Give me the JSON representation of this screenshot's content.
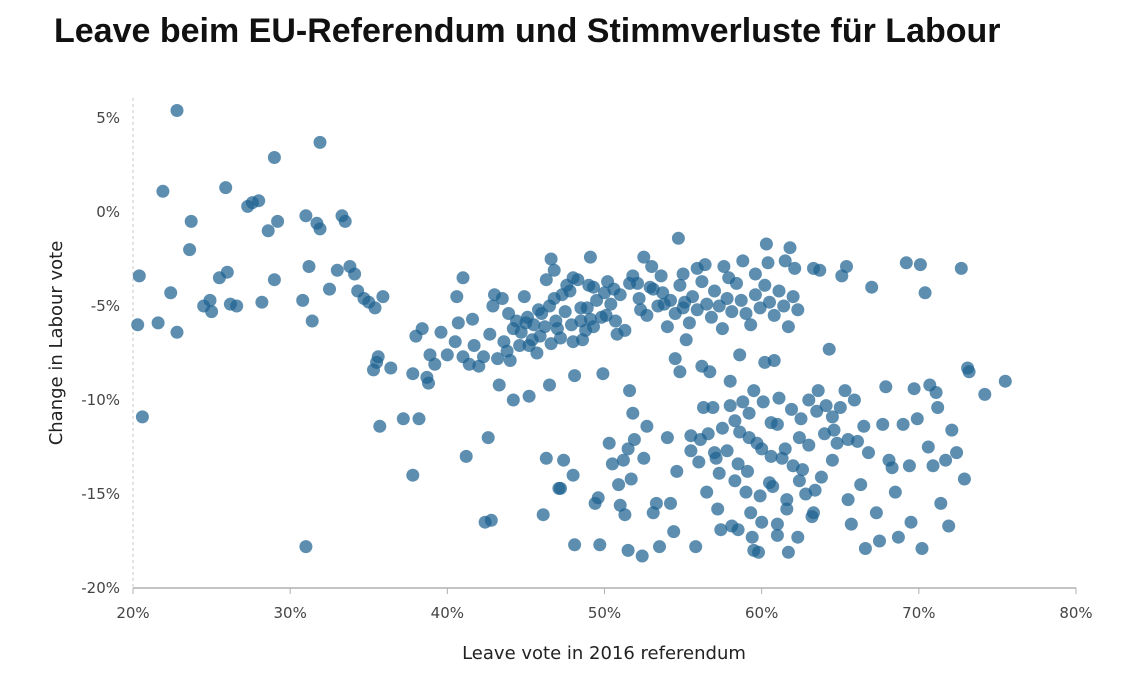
{
  "title": "Leave beim EU-Referendum und Stimmverluste für Labour",
  "chart_data": {
    "type": "scatter",
    "title": "Leave beim EU-Referendum und Stimmverluste für Labour",
    "xlabel": "Leave vote in 2016 referendum",
    "ylabel": "Change in Labour vote",
    "xlim": [
      20,
      80
    ],
    "ylim": [
      -20,
      6
    ],
    "x_ticks": [
      20,
      30,
      40,
      50,
      60,
      70,
      80
    ],
    "x_tick_labels": [
      "20%",
      "30%",
      "40%",
      "50%",
      "60%",
      "70%",
      "80%"
    ],
    "y_ticks": [
      5,
      0,
      -5,
      -10,
      -15,
      -20
    ],
    "y_tick_labels": [
      "5%",
      "0%",
      "-5%",
      "-10%",
      "-15%",
      "-20%"
    ],
    "grid": false,
    "marker_color": "#1f6391",
    "points": [
      [
        22.8,
        5.4
      ],
      [
        29.0,
        2.9
      ],
      [
        31.9,
        3.7
      ],
      [
        21.9,
        1.1
      ],
      [
        25.9,
        1.3
      ],
      [
        27.6,
        0.5
      ],
      [
        28.0,
        0.6
      ],
      [
        27.3,
        0.3
      ],
      [
        20.4,
        -3.4
      ],
      [
        20.3,
        -6.0
      ],
      [
        20.6,
        -10.9
      ],
      [
        21.6,
        -5.9
      ],
      [
        22.4,
        -4.3
      ],
      [
        22.8,
        -6.4
      ],
      [
        23.6,
        -2.0
      ],
      [
        23.7,
        -0.5
      ],
      [
        24.5,
        -5.0
      ],
      [
        24.9,
        -4.7
      ],
      [
        25.0,
        -5.3
      ],
      [
        25.5,
        -3.5
      ],
      [
        26.0,
        -3.2
      ],
      [
        26.2,
        -4.9
      ],
      [
        26.6,
        -5.0
      ],
      [
        28.2,
        -4.8
      ],
      [
        28.6,
        -1.0
      ],
      [
        29.0,
        -3.6
      ],
      [
        29.2,
        -0.5
      ],
      [
        30.8,
        -4.7
      ],
      [
        31.0,
        -0.2
      ],
      [
        31.2,
        -2.9
      ],
      [
        31.4,
        -5.8
      ],
      [
        31.7,
        -0.6
      ],
      [
        31.9,
        -0.9
      ],
      [
        31.0,
        -17.8
      ],
      [
        32.5,
        -4.1
      ],
      [
        33.0,
        -3.1
      ],
      [
        33.3,
        -0.2
      ],
      [
        33.5,
        -0.5
      ],
      [
        33.8,
        -2.9
      ],
      [
        34.1,
        -3.3
      ],
      [
        34.3,
        -4.2
      ],
      [
        34.7,
        -4.6
      ],
      [
        35.0,
        -4.8
      ],
      [
        35.4,
        -5.1
      ],
      [
        35.6,
        -7.7
      ],
      [
        35.7,
        -11.4
      ],
      [
        35.9,
        -4.5
      ],
      [
        36.4,
        -8.3
      ],
      [
        35.3,
        -8.4
      ],
      [
        35.5,
        -8.0
      ],
      [
        37.2,
        -11.0
      ],
      [
        37.8,
        -14.0
      ],
      [
        37.8,
        -8.6
      ],
      [
        38.0,
        -6.6
      ],
      [
        38.2,
        -11.0
      ],
      [
        38.4,
        -6.2
      ],
      [
        38.7,
        -8.8
      ],
      [
        38.8,
        -9.1
      ],
      [
        38.9,
        -7.6
      ],
      [
        39.2,
        -8.1
      ],
      [
        39.6,
        -6.4
      ],
      [
        40.0,
        -7.6
      ],
      [
        40.5,
        -6.9
      ],
      [
        40.7,
        -5.9
      ],
      [
        40.6,
        -4.5
      ],
      [
        41.0,
        -3.5
      ],
      [
        41.0,
        -7.7
      ],
      [
        41.2,
        -13.0
      ],
      [
        41.4,
        -8.1
      ],
      [
        41.6,
        -5.7
      ],
      [
        41.7,
        -7.1
      ],
      [
        42.0,
        -8.2
      ],
      [
        42.3,
        -7.7
      ],
      [
        42.4,
        -16.5
      ],
      [
        42.6,
        -12.0
      ],
      [
        42.7,
        -6.5
      ],
      [
        42.8,
        -16.4
      ],
      [
        42.9,
        -5.0
      ],
      [
        43.0,
        -4.4
      ],
      [
        43.2,
        -7.8
      ],
      [
        43.3,
        -9.2
      ],
      [
        43.5,
        -4.6
      ],
      [
        43.6,
        -6.9
      ],
      [
        43.8,
        -7.4
      ],
      [
        44.0,
        -7.9
      ],
      [
        44.2,
        -10.0
      ],
      [
        44.4,
        -5.8
      ],
      [
        44.7,
        -6.4
      ],
      [
        44.9,
        -4.5
      ],
      [
        45.1,
        -5.6
      ],
      [
        45.2,
        -7.1
      ],
      [
        45.2,
        -9.8
      ],
      [
        45.5,
        -6.0
      ],
      [
        45.7,
        -7.5
      ],
      [
        45.9,
        -6.6
      ],
      [
        46.0,
        -5.4
      ],
      [
        46.1,
        -16.1
      ],
      [
        46.3,
        -3.6
      ],
      [
        46.5,
        -5.0
      ],
      [
        46.6,
        -2.5
      ],
      [
        46.3,
        -13.1
      ],
      [
        46.5,
        -9.2
      ],
      [
        46.8,
        -4.6
      ],
      [
        47.0,
        -6.2
      ],
      [
        47.1,
        -14.7
      ],
      [
        47.2,
        -14.7
      ],
      [
        47.4,
        -13.2
      ],
      [
        47.6,
        -3.9
      ],
      [
        47.8,
        -4.2
      ],
      [
        48.0,
        -6.9
      ],
      [
        48.0,
        -14.0
      ],
      [
        48.1,
        -8.7
      ],
      [
        48.1,
        -17.7
      ],
      [
        48.3,
        -3.6
      ],
      [
        48.5,
        -5.8
      ],
      [
        48.6,
        -6.8
      ],
      [
        48.9,
        -5.1
      ],
      [
        49.1,
        -2.4
      ],
      [
        49.1,
        -5.7
      ],
      [
        49.3,
        -4.0
      ],
      [
        49.3,
        -6.1
      ],
      [
        49.4,
        -15.5
      ],
      [
        49.6,
        -15.2
      ],
      [
        49.7,
        -17.7
      ],
      [
        49.9,
        -8.6
      ],
      [
        50.0,
        -4.3
      ],
      [
        50.1,
        -5.5
      ],
      [
        50.3,
        -12.3
      ],
      [
        50.5,
        -13.4
      ],
      [
        50.6,
        -4.1
      ],
      [
        50.8,
        -6.5
      ],
      [
        50.9,
        -14.5
      ],
      [
        51.0,
        -15.6
      ],
      [
        51.2,
        -13.2
      ],
      [
        51.3,
        -16.1
      ],
      [
        51.5,
        -18.0
      ],
      [
        51.5,
        -12.6
      ],
      [
        51.6,
        -9.5
      ],
      [
        51.7,
        -14.2
      ],
      [
        51.8,
        -10.7
      ],
      [
        51.9,
        -12.1
      ],
      [
        52.1,
        -3.8
      ],
      [
        52.3,
        -5.2
      ],
      [
        52.4,
        -18.3
      ],
      [
        52.5,
        -13.1
      ],
      [
        52.7,
        -11.4
      ],
      [
        52.9,
        -4.0
      ],
      [
        53.1,
        -16.0
      ],
      [
        53.3,
        -15.5
      ],
      [
        53.5,
        -17.8
      ],
      [
        53.6,
        -3.4
      ],
      [
        53.8,
        -4.9
      ],
      [
        54.0,
        -12.0
      ],
      [
        54.2,
        -15.5
      ],
      [
        54.4,
        -17.0
      ],
      [
        54.5,
        -7.8
      ],
      [
        54.6,
        -13.8
      ],
      [
        54.7,
        -1.4
      ],
      [
        54.8,
        -8.5
      ],
      [
        55.0,
        -5.1
      ],
      [
        55.2,
        -6.8
      ],
      [
        55.5,
        -11.9
      ],
      [
        55.8,
        -17.8
      ],
      [
        55.9,
        -3.0
      ],
      [
        56.1,
        -12.1
      ],
      [
        56.2,
        -8.2
      ],
      [
        56.3,
        -10.4
      ],
      [
        56.5,
        -14.9
      ],
      [
        56.7,
        -8.5
      ],
      [
        56.9,
        -10.4
      ],
      [
        57.1,
        -13.1
      ],
      [
        57.2,
        -15.8
      ],
      [
        57.3,
        -13.9
      ],
      [
        57.4,
        -16.9
      ],
      [
        57.6,
        -2.9
      ],
      [
        57.8,
        -12.7
      ],
      [
        58.0,
        -9.0
      ],
      [
        58.1,
        -16.7
      ],
      [
        58.3,
        -11.1
      ],
      [
        58.5,
        -13.4
      ],
      [
        58.6,
        -7.6
      ],
      [
        58.8,
        -10.1
      ],
      [
        59.0,
        -14.9
      ],
      [
        59.2,
        -12.0
      ],
      [
        59.3,
        -16.0
      ],
      [
        59.4,
        -17.3
      ],
      [
        59.5,
        -9.5
      ],
      [
        59.6,
        -3.3
      ],
      [
        59.8,
        -18.1
      ],
      [
        60.0,
        -12.6
      ],
      [
        60.2,
        -8.0
      ],
      [
        60.3,
        -1.7
      ],
      [
        60.5,
        -14.4
      ],
      [
        60.6,
        -11.2
      ],
      [
        60.8,
        -7.9
      ],
      [
        61.0,
        -16.6
      ],
      [
        61.1,
        -9.9
      ],
      [
        61.3,
        -13.1
      ],
      [
        61.5,
        -2.6
      ],
      [
        61.6,
        -15.3
      ],
      [
        61.7,
        -18.1
      ],
      [
        61.9,
        -10.5
      ],
      [
        62.1,
        -3.0
      ],
      [
        62.3,
        -17.3
      ],
      [
        62.4,
        -12.0
      ],
      [
        62.6,
        -13.7
      ],
      [
        62.8,
        -15.0
      ],
      [
        63.0,
        -10.0
      ],
      [
        63.2,
        -16.2
      ],
      [
        63.3,
        -3.0
      ],
      [
        63.4,
        -14.8
      ],
      [
        63.6,
        -9.5
      ],
      [
        63.8,
        -14.1
      ],
      [
        64.1,
        -10.3
      ],
      [
        64.3,
        -7.3
      ],
      [
        64.5,
        -10.9
      ],
      [
        64.6,
        -11.6
      ],
      [
        64.8,
        -12.3
      ],
      [
        65.1,
        -3.4
      ],
      [
        65.3,
        -9.5
      ],
      [
        65.5,
        -15.3
      ],
      [
        65.7,
        -16.6
      ],
      [
        65.9,
        -10.0
      ],
      [
        66.1,
        -12.2
      ],
      [
        66.3,
        -14.5
      ],
      [
        66.5,
        -11.4
      ],
      [
        66.6,
        -17.9
      ],
      [
        66.8,
        -12.8
      ],
      [
        67.0,
        -4.0
      ],
      [
        67.3,
        -16.0
      ],
      [
        67.5,
        -17.5
      ],
      [
        67.7,
        -11.3
      ],
      [
        67.9,
        -9.3
      ],
      [
        68.1,
        -13.2
      ],
      [
        68.3,
        -13.6
      ],
      [
        68.5,
        -14.9
      ],
      [
        68.7,
        -17.3
      ],
      [
        69.0,
        -11.3
      ],
      [
        69.2,
        -2.7
      ],
      [
        69.4,
        -13.5
      ],
      [
        69.5,
        -16.5
      ],
      [
        69.7,
        -9.4
      ],
      [
        69.9,
        -11.0
      ],
      [
        70.1,
        -2.8
      ],
      [
        70.2,
        -17.9
      ],
      [
        70.4,
        -4.3
      ],
      [
        70.6,
        -12.5
      ],
      [
        70.7,
        -9.2
      ],
      [
        70.9,
        -13.5
      ],
      [
        71.1,
        -9.6
      ],
      [
        71.2,
        -10.4
      ],
      [
        71.4,
        -15.5
      ],
      [
        71.7,
        -13.2
      ],
      [
        71.9,
        -16.7
      ],
      [
        72.1,
        -11.6
      ],
      [
        72.4,
        -12.8
      ],
      [
        72.7,
        -3.0
      ],
      [
        72.9,
        -14.2
      ],
      [
        73.1,
        -8.3
      ],
      [
        73.2,
        -8.5
      ],
      [
        74.2,
        -9.7
      ],
      [
        75.5,
        -9.0
      ],
      [
        51.6,
        -3.8
      ],
      [
        52.2,
        -4.6
      ],
      [
        52.7,
        -5.5
      ],
      [
        53.1,
        -4.1
      ],
      [
        53.4,
        -5.0
      ],
      [
        53.7,
        -4.3
      ],
      [
        54.0,
        -6.1
      ],
      [
        54.2,
        -4.7
      ],
      [
        54.5,
        -5.4
      ],
      [
        54.8,
        -3.9
      ],
      [
        55.1,
        -4.8
      ],
      [
        55.4,
        -5.9
      ],
      [
        55.6,
        -4.5
      ],
      [
        55.9,
        -5.2
      ],
      [
        56.2,
        -3.7
      ],
      [
        56.5,
        -4.9
      ],
      [
        56.8,
        -5.6
      ],
      [
        57.0,
        -4.2
      ],
      [
        57.3,
        -5.0
      ],
      [
        57.5,
        -6.2
      ],
      [
        57.8,
        -4.6
      ],
      [
        58.1,
        -5.3
      ],
      [
        58.4,
        -3.8
      ],
      [
        58.7,
        -4.7
      ],
      [
        59.0,
        -5.4
      ],
      [
        59.3,
        -6.0
      ],
      [
        59.6,
        -4.4
      ],
      [
        59.9,
        -5.1
      ],
      [
        60.2,
        -3.9
      ],
      [
        60.5,
        -4.8
      ],
      [
        60.8,
        -5.5
      ],
      [
        61.1,
        -4.2
      ],
      [
        61.4,
        -5.0
      ],
      [
        61.7,
        -6.1
      ],
      [
        62.0,
        -4.5
      ],
      [
        62.3,
        -5.2
      ],
      [
        50.4,
        -4.9
      ],
      [
        50.7,
        -5.8
      ],
      [
        51.0,
        -4.4
      ],
      [
        51.3,
        -6.3
      ],
      [
        49.8,
        -5.6
      ],
      [
        49.5,
        -4.7
      ],
      [
        48.8,
        -6.3
      ],
      [
        48.5,
        -5.1
      ],
      [
        47.9,
        -6.0
      ],
      [
        47.5,
        -5.3
      ],
      [
        47.2,
        -6.7
      ],
      [
        46.9,
        -5.8
      ],
      [
        46.6,
        -7.0
      ],
      [
        46.2,
        -6.1
      ],
      [
        45.8,
        -5.2
      ],
      [
        45.4,
        -6.8
      ],
      [
        45.0,
        -5.9
      ],
      [
        44.6,
        -7.1
      ],
      [
        44.2,
        -6.2
      ],
      [
        43.9,
        -5.4
      ],
      [
        58.0,
        -10.3
      ],
      [
        58.6,
        -11.7
      ],
      [
        59.2,
        -10.7
      ],
      [
        59.7,
        -12.3
      ],
      [
        60.1,
        -10.1
      ],
      [
        60.6,
        -13.0
      ],
      [
        61.0,
        -11.3
      ],
      [
        61.5,
        -12.6
      ],
      [
        62.0,
        -13.5
      ],
      [
        62.5,
        -11.0
      ],
      [
        63.0,
        -12.4
      ],
      [
        63.5,
        -10.6
      ],
      [
        64.0,
        -11.8
      ],
      [
        64.5,
        -13.2
      ],
      [
        65.0,
        -10.4
      ],
      [
        65.5,
        -12.1
      ],
      [
        57.5,
        -11.5
      ],
      [
        57.0,
        -12.8
      ],
      [
        56.6,
        -11.8
      ],
      [
        56.0,
        -13.3
      ],
      [
        55.5,
        -12.7
      ],
      [
        58.3,
        -14.3
      ],
      [
        59.1,
        -13.8
      ],
      [
        59.9,
        -15.1
      ],
      [
        60.7,
        -14.6
      ],
      [
        61.6,
        -15.8
      ],
      [
        62.4,
        -14.3
      ],
      [
        63.3,
        -16.0
      ],
      [
        60.0,
        -16.5
      ],
      [
        61.0,
        -17.2
      ],
      [
        59.5,
        -18.0
      ],
      [
        58.5,
        -16.9
      ],
      [
        55.0,
        -3.3
      ],
      [
        56.4,
        -2.8
      ],
      [
        57.9,
        -3.5
      ],
      [
        58.8,
        -2.6
      ],
      [
        60.4,
        -2.7
      ],
      [
        61.8,
        -1.9
      ],
      [
        63.7,
        -3.1
      ],
      [
        65.4,
        -2.9
      ],
      [
        52.5,
        -2.4
      ],
      [
        53.0,
        -2.9
      ],
      [
        51.8,
        -3.4
      ],
      [
        50.2,
        -3.7
      ],
      [
        49.0,
        -3.9
      ],
      [
        48.0,
        -3.5
      ],
      [
        47.3,
        -4.4
      ],
      [
        46.8,
        -3.1
      ]
    ]
  }
}
